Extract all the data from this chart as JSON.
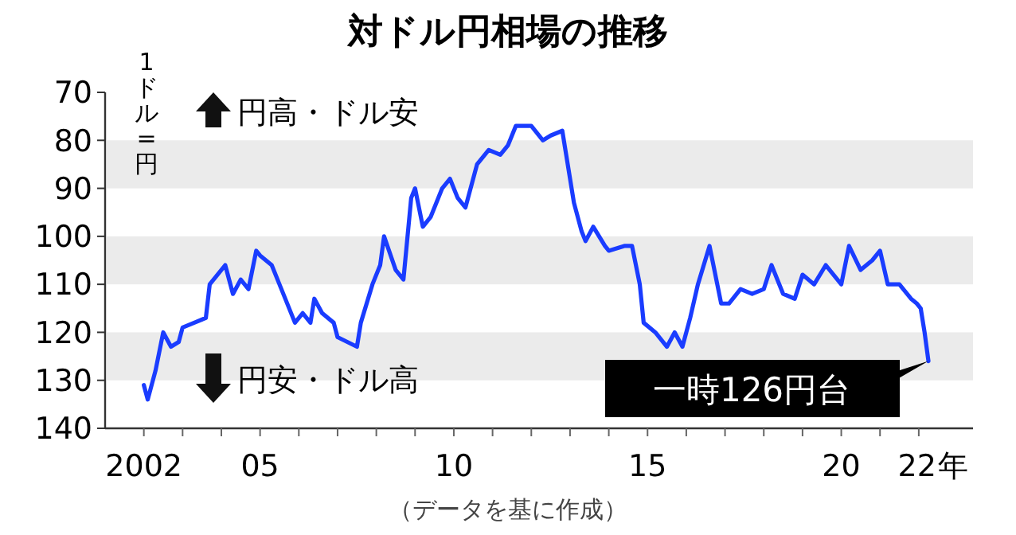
{
  "chart_data": {
    "type": "line",
    "title": "対ドル円相場の推移",
    "ylabel": "1ドル=円",
    "x": [
      2002.0,
      2002.1,
      2002.3,
      2002.5,
      2002.7,
      2002.9,
      2003.0,
      2003.3,
      2003.6,
      2003.7,
      2003.9,
      2004.1,
      2004.3,
      2004.5,
      2004.7,
      2004.9,
      2005.0,
      2005.3,
      2005.5,
      2005.9,
      2006.1,
      2006.3,
      2006.4,
      2006.6,
      2006.9,
      2007.0,
      2007.5,
      2007.6,
      2007.9,
      2008.1,
      2008.2,
      2008.5,
      2008.7,
      2008.9,
      2009.0,
      2009.2,
      2009.4,
      2009.7,
      2009.9,
      2010.1,
      2010.3,
      2010.6,
      2010.9,
      2011.2,
      2011.4,
      2011.6,
      2011.8,
      2012.0,
      2012.3,
      2012.5,
      2012.8,
      2012.9,
      2013.1,
      2013.3,
      2013.4,
      2013.6,
      2013.9,
      2014.0,
      2014.4,
      2014.6,
      2014.8,
      2014.9,
      2015.2,
      2015.5,
      2015.7,
      2015.9,
      2016.1,
      2016.3,
      2016.6,
      2016.9,
      2017.1,
      2017.4,
      2017.7,
      2018.0,
      2018.2,
      2018.5,
      2018.8,
      2019.0,
      2019.3,
      2019.6,
      2019.9,
      2020.0,
      2020.2,
      2020.5,
      2020.8,
      2021.0,
      2021.2,
      2021.5,
      2021.8,
      2021.95,
      2022.05,
      2022.15,
      2022.25
    ],
    "series": [
      {
        "color": "#1a3cff",
        "values": [
          131,
          134,
          128,
          120,
          123,
          122,
          119,
          118,
          117,
          110,
          108,
          106,
          112,
          109,
          111,
          103,
          104,
          106,
          110,
          118,
          116,
          118,
          113,
          116,
          118,
          121,
          123,
          118,
          110,
          106,
          100,
          107,
          109,
          92,
          90,
          98,
          96,
          90,
          88,
          92,
          94,
          85,
          82,
          83,
          81,
          77,
          77,
          77,
          80,
          79,
          78,
          83,
          93,
          99,
          101,
          98,
          102,
          103,
          102,
          102,
          110,
          118,
          120,
          123,
          120,
          123,
          117,
          110,
          102,
          114,
          114,
          111,
          112,
          111,
          106,
          112,
          113,
          108,
          110,
          106,
          109,
          110,
          102,
          107,
          105,
          103,
          110,
          110,
          113,
          114,
          115,
          120,
          126
        ]
      }
    ],
    "xlim": [
      2001,
      2023.4
    ],
    "xticks": [
      {
        "value": 2002,
        "label": "2002"
      },
      {
        "value": 2003,
        "label": null
      },
      {
        "value": 2004,
        "label": null
      },
      {
        "value": 2005,
        "label": "05"
      },
      {
        "value": 2006,
        "label": null
      },
      {
        "value": 2007,
        "label": null
      },
      {
        "value": 2008,
        "label": null
      },
      {
        "value": 2009,
        "label": null
      },
      {
        "value": 2010,
        "label": "10"
      },
      {
        "value": 2011,
        "label": null
      },
      {
        "value": 2012,
        "label": null
      },
      {
        "value": 2013,
        "label": null
      },
      {
        "value": 2014,
        "label": null
      },
      {
        "value": 2015,
        "label": "15"
      },
      {
        "value": 2016,
        "label": null
      },
      {
        "value": 2017,
        "label": null
      },
      {
        "value": 2018,
        "label": null
      },
      {
        "value": 2019,
        "label": null
      },
      {
        "value": 2020,
        "label": "20"
      },
      {
        "value": 2021,
        "label": null
      },
      {
        "value": 2022,
        "label": "22"
      }
    ],
    "xlabel": "年",
    "ylim": [
      140,
      70
    ],
    "yticks": [
      70,
      80,
      90,
      100,
      110,
      120,
      130,
      140
    ],
    "bands": [
      {
        "axis": "y",
        "from": 80,
        "to": 90,
        "color": "#ebebeb"
      },
      {
        "axis": "y",
        "from": 100,
        "to": 110,
        "color": "#ebebeb"
      },
      {
        "axis": "y",
        "from": 120,
        "to": 130,
        "color": "#ebebeb"
      }
    ],
    "annotations": [
      "円高・ドル安",
      "円安・ドル高",
      {
        "text": "一時126円台",
        "x": 2022.25,
        "y": 126
      },
      "（データを基に作成）"
    ],
    "line_style": "solid",
    "marker": "none",
    "grid": false
  }
}
